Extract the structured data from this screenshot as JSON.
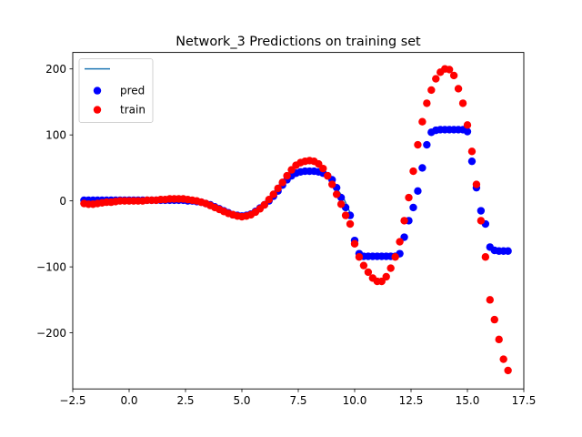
{
  "chart_data": {
    "type": "scatter",
    "title": "Network_3 Predictions on training set",
    "xlabel": "",
    "ylabel": "",
    "xlim": [
      -2.5,
      17.5
    ],
    "ylim": [
      -285,
      225
    ],
    "x_ticks": [
      -2.5,
      0.0,
      2.5,
      5.0,
      7.5,
      10.0,
      12.5,
      15.0,
      17.5
    ],
    "x_tick_labels": [
      "−2.5",
      "0.0",
      "2.5",
      "5.0",
      "7.5",
      "10.0",
      "12.5",
      "15.0",
      "17.5"
    ],
    "y_ticks": [
      -200,
      -100,
      0,
      100,
      200
    ],
    "y_tick_labels": [
      "−200",
      "−100",
      "0",
      "100",
      "200"
    ],
    "grid": false,
    "legend": {
      "placement": "top-left",
      "entries": [
        {
          "label": "",
          "kind": "line",
          "color": "#1f77b4"
        },
        {
          "label": "pred",
          "kind": "marker",
          "color": "#0000ff"
        },
        {
          "label": "train",
          "kind": "marker",
          "color": "#ff0000"
        }
      ]
    },
    "series": [
      {
        "name": "",
        "kind": "line",
        "color": "#1f77b4",
        "x": [
          -1.9,
          -1.5,
          -1.0,
          -0.5,
          0.0,
          0.5,
          1.0,
          1.5,
          2.0,
          2.5,
          3.0,
          3.5,
          4.0,
          4.5,
          5.0,
          5.5,
          6.0,
          6.5,
          7.0,
          7.5,
          8.0,
          8.5,
          9.0,
          9.5,
          9.8
        ],
        "y": [
          1,
          1,
          1,
          1,
          1,
          1,
          1,
          1,
          1,
          0,
          -1,
          -4,
          -10,
          -18,
          -23,
          -19,
          -7,
          10,
          32,
          42,
          45,
          44,
          28,
          5,
          -18
        ]
      },
      {
        "name": "pred",
        "kind": "scatter",
        "color": "#0000ff",
        "x": [
          -2.0,
          -1.8,
          -1.6,
          -1.4,
          -1.2,
          -1.0,
          -0.8,
          -0.6,
          -0.4,
          -0.2,
          0.0,
          0.2,
          0.4,
          0.6,
          0.8,
          1.0,
          1.2,
          1.4,
          1.6,
          1.8,
          2.0,
          2.2,
          2.4,
          2.6,
          2.8,
          3.0,
          3.2,
          3.4,
          3.6,
          3.8,
          4.0,
          4.2,
          4.4,
          4.6,
          4.8,
          5.0,
          5.2,
          5.4,
          5.6,
          5.8,
          6.0,
          6.2,
          6.4,
          6.6,
          6.8,
          7.0,
          7.2,
          7.4,
          7.6,
          7.8,
          8.0,
          8.2,
          8.4,
          8.6,
          8.8,
          9.0,
          9.2,
          9.4,
          9.6,
          9.8,
          10.0,
          10.2,
          10.4,
          10.6,
          10.8,
          11.0,
          11.2,
          11.4,
          11.6,
          11.8,
          12.0,
          12.2,
          12.4,
          12.6,
          12.8,
          13.0,
          13.2,
          13.4,
          13.6,
          13.8,
          14.0,
          14.2,
          14.4,
          14.6,
          14.8,
          15.0,
          15.2,
          15.4,
          15.6,
          15.8,
          16.0,
          16.2,
          16.4,
          16.6,
          16.8
        ],
        "y": [
          1,
          1,
          1,
          1,
          1,
          1,
          1,
          1,
          1,
          1,
          1,
          1,
          1,
          1,
          1,
          1,
          1,
          1,
          1,
          1,
          1,
          1,
          1,
          0,
          0,
          -1,
          -2,
          -4,
          -6,
          -9,
          -12,
          -15,
          -18,
          -21,
          -22,
          -23,
          -22,
          -20,
          -16,
          -11,
          -6,
          0,
          7,
          15,
          24,
          32,
          38,
          42,
          44,
          45,
          45,
          45,
          44,
          42,
          38,
          32,
          20,
          5,
          -10,
          -22,
          -60,
          -80,
          -84,
          -84,
          -84,
          -84,
          -84,
          -84,
          -84,
          -84,
          -80,
          -55,
          -30,
          -10,
          15,
          50,
          85,
          104,
          107,
          108,
          108,
          108,
          108,
          108,
          108,
          105,
          60,
          20,
          -15,
          -35,
          -70,
          -75,
          -76,
          -76,
          -76
        ]
      },
      {
        "name": "train",
        "kind": "scatter",
        "color": "#ff0000",
        "x": [
          -2.0,
          -1.8,
          -1.6,
          -1.4,
          -1.2,
          -1.0,
          -0.8,
          -0.6,
          -0.4,
          -0.2,
          0.0,
          0.2,
          0.4,
          0.6,
          0.8,
          1.0,
          1.2,
          1.4,
          1.6,
          1.8,
          2.0,
          2.2,
          2.4,
          2.6,
          2.8,
          3.0,
          3.2,
          3.4,
          3.6,
          3.8,
          4.0,
          4.2,
          4.4,
          4.6,
          4.8,
          5.0,
          5.2,
          5.4,
          5.6,
          5.8,
          6.0,
          6.2,
          6.4,
          6.6,
          6.8,
          7.0,
          7.2,
          7.4,
          7.6,
          7.8,
          8.0,
          8.2,
          8.4,
          8.6,
          8.8,
          9.0,
          9.2,
          9.4,
          9.6,
          9.8,
          10.0,
          10.2,
          10.4,
          10.6,
          10.8,
          11.0,
          11.2,
          11.4,
          11.6,
          11.8,
          12.0,
          12.2,
          12.4,
          12.6,
          12.8,
          13.0,
          13.2,
          13.4,
          13.6,
          13.8,
          14.0,
          14.2,
          14.4,
          14.6,
          14.8,
          15.0,
          15.2,
          15.4,
          15.6,
          15.8,
          16.0,
          16.2,
          16.4,
          16.6,
          16.8
        ],
        "y": [
          -4,
          -5,
          -5,
          -4,
          -3,
          -2,
          -2,
          -1,
          0,
          0,
          0,
          0,
          0,
          0,
          1,
          1,
          1,
          2,
          2,
          3,
          3,
          3,
          3,
          2,
          1,
          0,
          -2,
          -4,
          -7,
          -10,
          -13,
          -16,
          -19,
          -21,
          -23,
          -24,
          -23,
          -21,
          -17,
          -12,
          -6,
          2,
          10,
          19,
          28,
          38,
          47,
          54,
          58,
          60,
          61,
          60,
          56,
          49,
          38,
          25,
          10,
          -5,
          -22,
          -35,
          -65,
          -85,
          -98,
          -108,
          -117,
          -122,
          -122,
          -115,
          -102,
          -85,
          -62,
          -30,
          5,
          45,
          85,
          120,
          148,
          168,
          185,
          195,
          200,
          199,
          190,
          170,
          148,
          115,
          75,
          25,
          -30,
          -85,
          -150,
          -180,
          -210,
          -240,
          -257
        ]
      }
    ]
  }
}
